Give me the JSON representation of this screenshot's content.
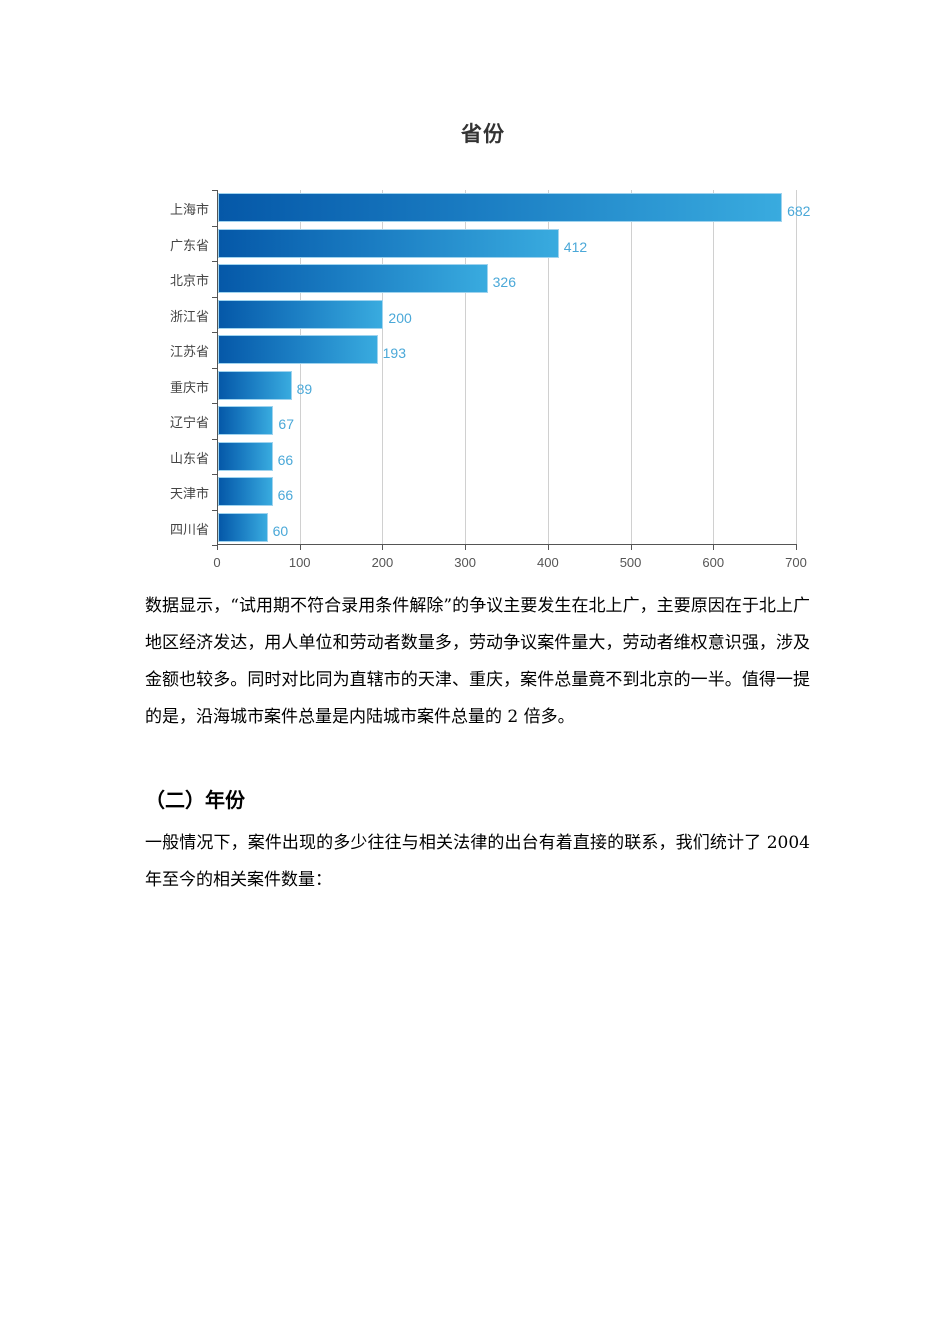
{
  "chart_data": {
    "type": "bar",
    "orientation": "horizontal",
    "title": "省份",
    "categories": [
      "上海市",
      "广东省",
      "北京市",
      "浙江省",
      "江苏省",
      "重庆市",
      "辽宁省",
      "山东省",
      "天津市",
      "四川省"
    ],
    "values": [
      682,
      412,
      326,
      200,
      193,
      89,
      67,
      66,
      66,
      60
    ],
    "xlabel": "",
    "ylabel": "",
    "xlim": [
      0,
      700
    ],
    "xticks": [
      "0",
      "100",
      "200",
      "300",
      "400",
      "500",
      "600",
      "700"
    ],
    "grid": true,
    "legend": null,
    "bar_color": {
      "start": "#0558a8",
      "end": "#39abdf"
    },
    "label_color": "#4aa8d8"
  },
  "document": {
    "paragraph1": "数据显示，“试用期不符合录用条件解除”的争议主要发生在北上广，主要原因在于北上广地区经济发达，用人单位和劳动者数量多，劳动争议案件量大，劳动者维权意识强，涉及金额也较多。同时对比同为直辖市的天津、重庆，案件总量竟不到北京的一半。值得一提的是，沿海城市案件总量是内陆城市案件总量的 2 倍多。",
    "section_heading": "（二）年份",
    "paragraph2": "一般情况下，案件出现的多少往往与相关法律的出台有着直接的联系，我们统计了 2004 年至今的相关案件数量："
  }
}
